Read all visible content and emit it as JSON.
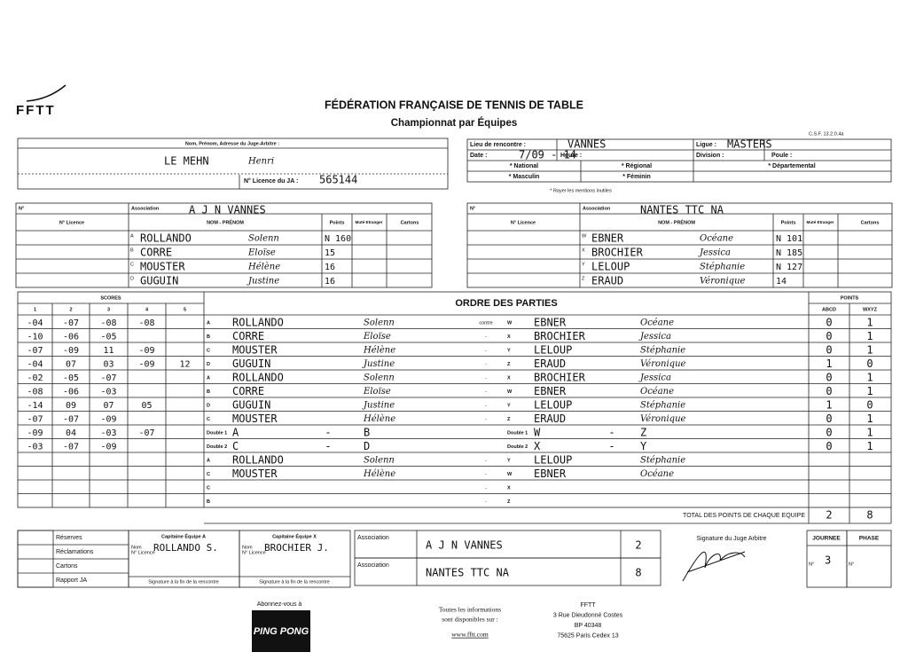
{
  "logo": "FFTT",
  "header": {
    "title": "FÉDÉRATION FRANÇAISE DE TENNIS DE TABLE",
    "subtitle": "Championnat par Équipes",
    "ref": "C.S.F. 13.2.0.4a"
  },
  "referee": {
    "label": "Nom, Prénom, Adresse du Juge-Arbitre :",
    "name": "LE MEHN",
    "first_name": "Henri",
    "licence_label": "N° Licence du JA :",
    "licence": "565144"
  },
  "meeting": {
    "place_label": "Lieu de rencontre :",
    "place": "VANNES",
    "league_label": "Ligue :",
    "league": "MASTERS",
    "date_label": "Date :",
    "date": "7/09 - 14",
    "time_label": "Heure :",
    "division_label": "Division :",
    "pool_label": "Poule :",
    "levels": [
      "* National",
      "* Régional",
      "* Départemental"
    ],
    "genders": [
      "* Masculin",
      "* Féminin"
    ],
    "note": "* Rayer les mentions inutiles"
  },
  "teams": [
    {
      "number_label": "N°",
      "association_label": "Association",
      "association": "A J N VANNES",
      "columns": [
        "N° Licence",
        "NOM - PRÉNOM",
        "Points",
        "Muté Etranger",
        "Cartons"
      ],
      "players": [
        {
          "letter": "A",
          "name": "ROLLANDO",
          "first_name": "Solenn",
          "points": "N 160"
        },
        {
          "letter": "B",
          "name": "CORRE",
          "first_name": "Eloïse",
          "points": "15"
        },
        {
          "letter": "C",
          "name": "MOUSTER",
          "first_name": "Hélène",
          "points": "16"
        },
        {
          "letter": "D",
          "name": "GUGUIN",
          "first_name": "Justine",
          "points": "16"
        }
      ]
    },
    {
      "number_label": "N°",
      "association_label": "Association",
      "association": "NANTES TTC NA",
      "columns": [
        "N° Licence",
        "NOM - PRÉNOM",
        "Points",
        "Muté Etranger",
        "Cartons"
      ],
      "players": [
        {
          "letter": "W",
          "name": "EBNER",
          "first_name": "Océane",
          "points": "N 101"
        },
        {
          "letter": "X",
          "name": "BROCHIER",
          "first_name": "Jessica",
          "points": "N 185"
        },
        {
          "letter": "Y",
          "name": "LELOUP",
          "first_name": "Stéphanie",
          "points": "N 127"
        },
        {
          "letter": "Z",
          "name": "ERAUD",
          "first_name": "Véronique",
          "points": "14"
        }
      ]
    }
  ],
  "matches": {
    "scores_label": "SCORES",
    "set_numbers": [
      1,
      2,
      3,
      4,
      5
    ],
    "title": "ORDRE DES PARTIES",
    "points_label": "POINTS",
    "team_a_label": "ABCD",
    "team_x_label": "WXYZ",
    "rows": [
      {
        "scores": [
          "-04",
          "-07",
          "-08",
          "-08"
        ],
        "a_letter": "A",
        "a_name": "ROLLANDO",
        "a_first": "Solenn",
        "sep": "contre",
        "x_letter": "W",
        "x_name": "EBNER",
        "x_first": "Océane",
        "points_a": 0,
        "points_x": 1
      },
      {
        "scores": [
          "-10",
          "-06",
          "-05"
        ],
        "a_letter": "B",
        "a_name": "CORRE",
        "a_first": "Eloïse",
        "sep": "-",
        "x_letter": "X",
        "x_name": "BROCHIER",
        "x_first": "Jessica",
        "points_a": 0,
        "points_x": 1
      },
      {
        "scores": [
          "-07",
          "-09",
          "11",
          "-09"
        ],
        "a_letter": "C",
        "a_name": "MOUSTER",
        "a_first": "Hélène",
        "sep": "-",
        "x_letter": "Y",
        "x_name": "LELOUP",
        "x_first": "Stéphanie",
        "points_a": 0,
        "points_x": 1
      },
      {
        "scores": [
          "-04",
          "07",
          "03",
          "-09",
          "12"
        ],
        "a_letter": "D",
        "a_name": "GUGUIN",
        "a_first": "Justine",
        "sep": "-",
        "x_letter": "Z",
        "x_name": "ERAUD",
        "x_first": "Véronique",
        "points_a": 1,
        "points_x": 0
      },
      {
        "scores": [
          "-02",
          "-05",
          "-07"
        ],
        "a_letter": "A",
        "a_name": "ROLLANDO",
        "a_first": "Solenn",
        "sep": "-",
        "x_letter": "X",
        "x_name": "BROCHIER",
        "x_first": "Jessica",
        "points_a": 0,
        "points_x": 1
      },
      {
        "scores": [
          "-08",
          "-06",
          "-03"
        ],
        "a_letter": "B",
        "a_name": "CORRE",
        "a_first": "Eloïse",
        "sep": "-",
        "x_letter": "W",
        "x_name": "EBNER",
        "x_first": "Océane",
        "points_a": 0,
        "points_x": 1
      },
      {
        "scores": [
          "-14",
          "09",
          "07",
          "05"
        ],
        "a_letter": "D",
        "a_name": "GUGUIN",
        "a_first": "Justine",
        "sep": "-",
        "x_letter": "Y",
        "x_name": "LELOUP",
        "x_first": "Stéphanie",
        "points_a": 1,
        "points_x": 0
      },
      {
        "scores": [
          "-07",
          "-07",
          "-09"
        ],
        "a_letter": "C",
        "a_name": "MOUSTER",
        "a_first": "Hélène",
        "sep": "-",
        "x_letter": "Z",
        "x_name": "ERAUD",
        "x_first": "Véronique",
        "points_a": 0,
        "points_x": 1
      },
      {
        "scores": [
          "-09",
          "04",
          "-03",
          "-07"
        ],
        "a_letter": "Double 1",
        "a_name": "A",
        "a_dash": "-",
        "a_first": "B",
        "x_letter": "Double 1",
        "x_name": "W",
        "x_dash": "-",
        "x_first": "Z",
        "points_a": 0,
        "points_x": 1
      },
      {
        "scores": [
          "-03",
          "-07",
          "-09"
        ],
        "a_letter": "Double 2",
        "a_name": "C",
        "a_dash": "-",
        "a_first": "D",
        "x_letter": "Double 2",
        "x_name": "X",
        "x_dash": "-",
        "x_first": "Y",
        "points_a": 0,
        "points_x": 1
      },
      {
        "a_letter": "A",
        "a_name": "ROLLANDO",
        "a_first": "Solenn",
        "sep": "-",
        "x_letter": "Y",
        "x_name": "LELOUP",
        "x_first": "Stéphanie"
      },
      {
        "a_letter": "C",
        "a_name": "MOUSTER",
        "a_first": "Hélène",
        "sep": "-",
        "x_letter": "W",
        "x_name": "EBNER",
        "x_first": "Océane"
      },
      {
        "a_letter": "C",
        "sep": "-",
        "x_letter": "X"
      },
      {
        "a_letter": "B",
        "sep": "-",
        "x_letter": "Z"
      }
    ],
    "total_label": "TOTAL DES POINTS DE CHAQUE EQUIPE",
    "total_a": 2,
    "total_x": 8
  },
  "footer_form": {
    "remarks": [
      "Réserves",
      "Réclamations",
      "Cartons",
      "Rapport JA"
    ],
    "captains": [
      {
        "title": "Capitaine Équipe A",
        "name_label": "Nom",
        "licence_label": "N° Licence",
        "name": "ROLLANDO S.",
        "signature_note": "Signature à la fin de la rencontre"
      },
      {
        "title": "Capitaine Équipe X",
        "name_label": "Nom",
        "licence_label": "N° Licence",
        "name": "BROCHIER J.",
        "signature_note": "Signature à la fin de la rencontre"
      }
    ],
    "results": [
      {
        "label": "Association",
        "team": "A J N VANNES",
        "score": 2
      },
      {
        "label": "Association",
        "team": "NANTES TTC NA",
        "score": 8
      }
    ],
    "referee_signature": "Signature du Juge Arbitre",
    "round": {
      "label": "JOURNEE",
      "number_label": "N°",
      "number": 3
    },
    "phase": {
      "label": "PHASE",
      "number_label": "N°"
    }
  },
  "footer": {
    "subscribe": "Abonnez-vous à",
    "logo": "PING PONG",
    "info": [
      "Toutes les informations",
      "sont disponibles sur :"
    ],
    "url": "www.fftt.com",
    "address": [
      "FFTT",
      "3 Rue Dieudonné Costes",
      "BP 40348",
      "75625 Paris Cedex 13"
    ]
  }
}
